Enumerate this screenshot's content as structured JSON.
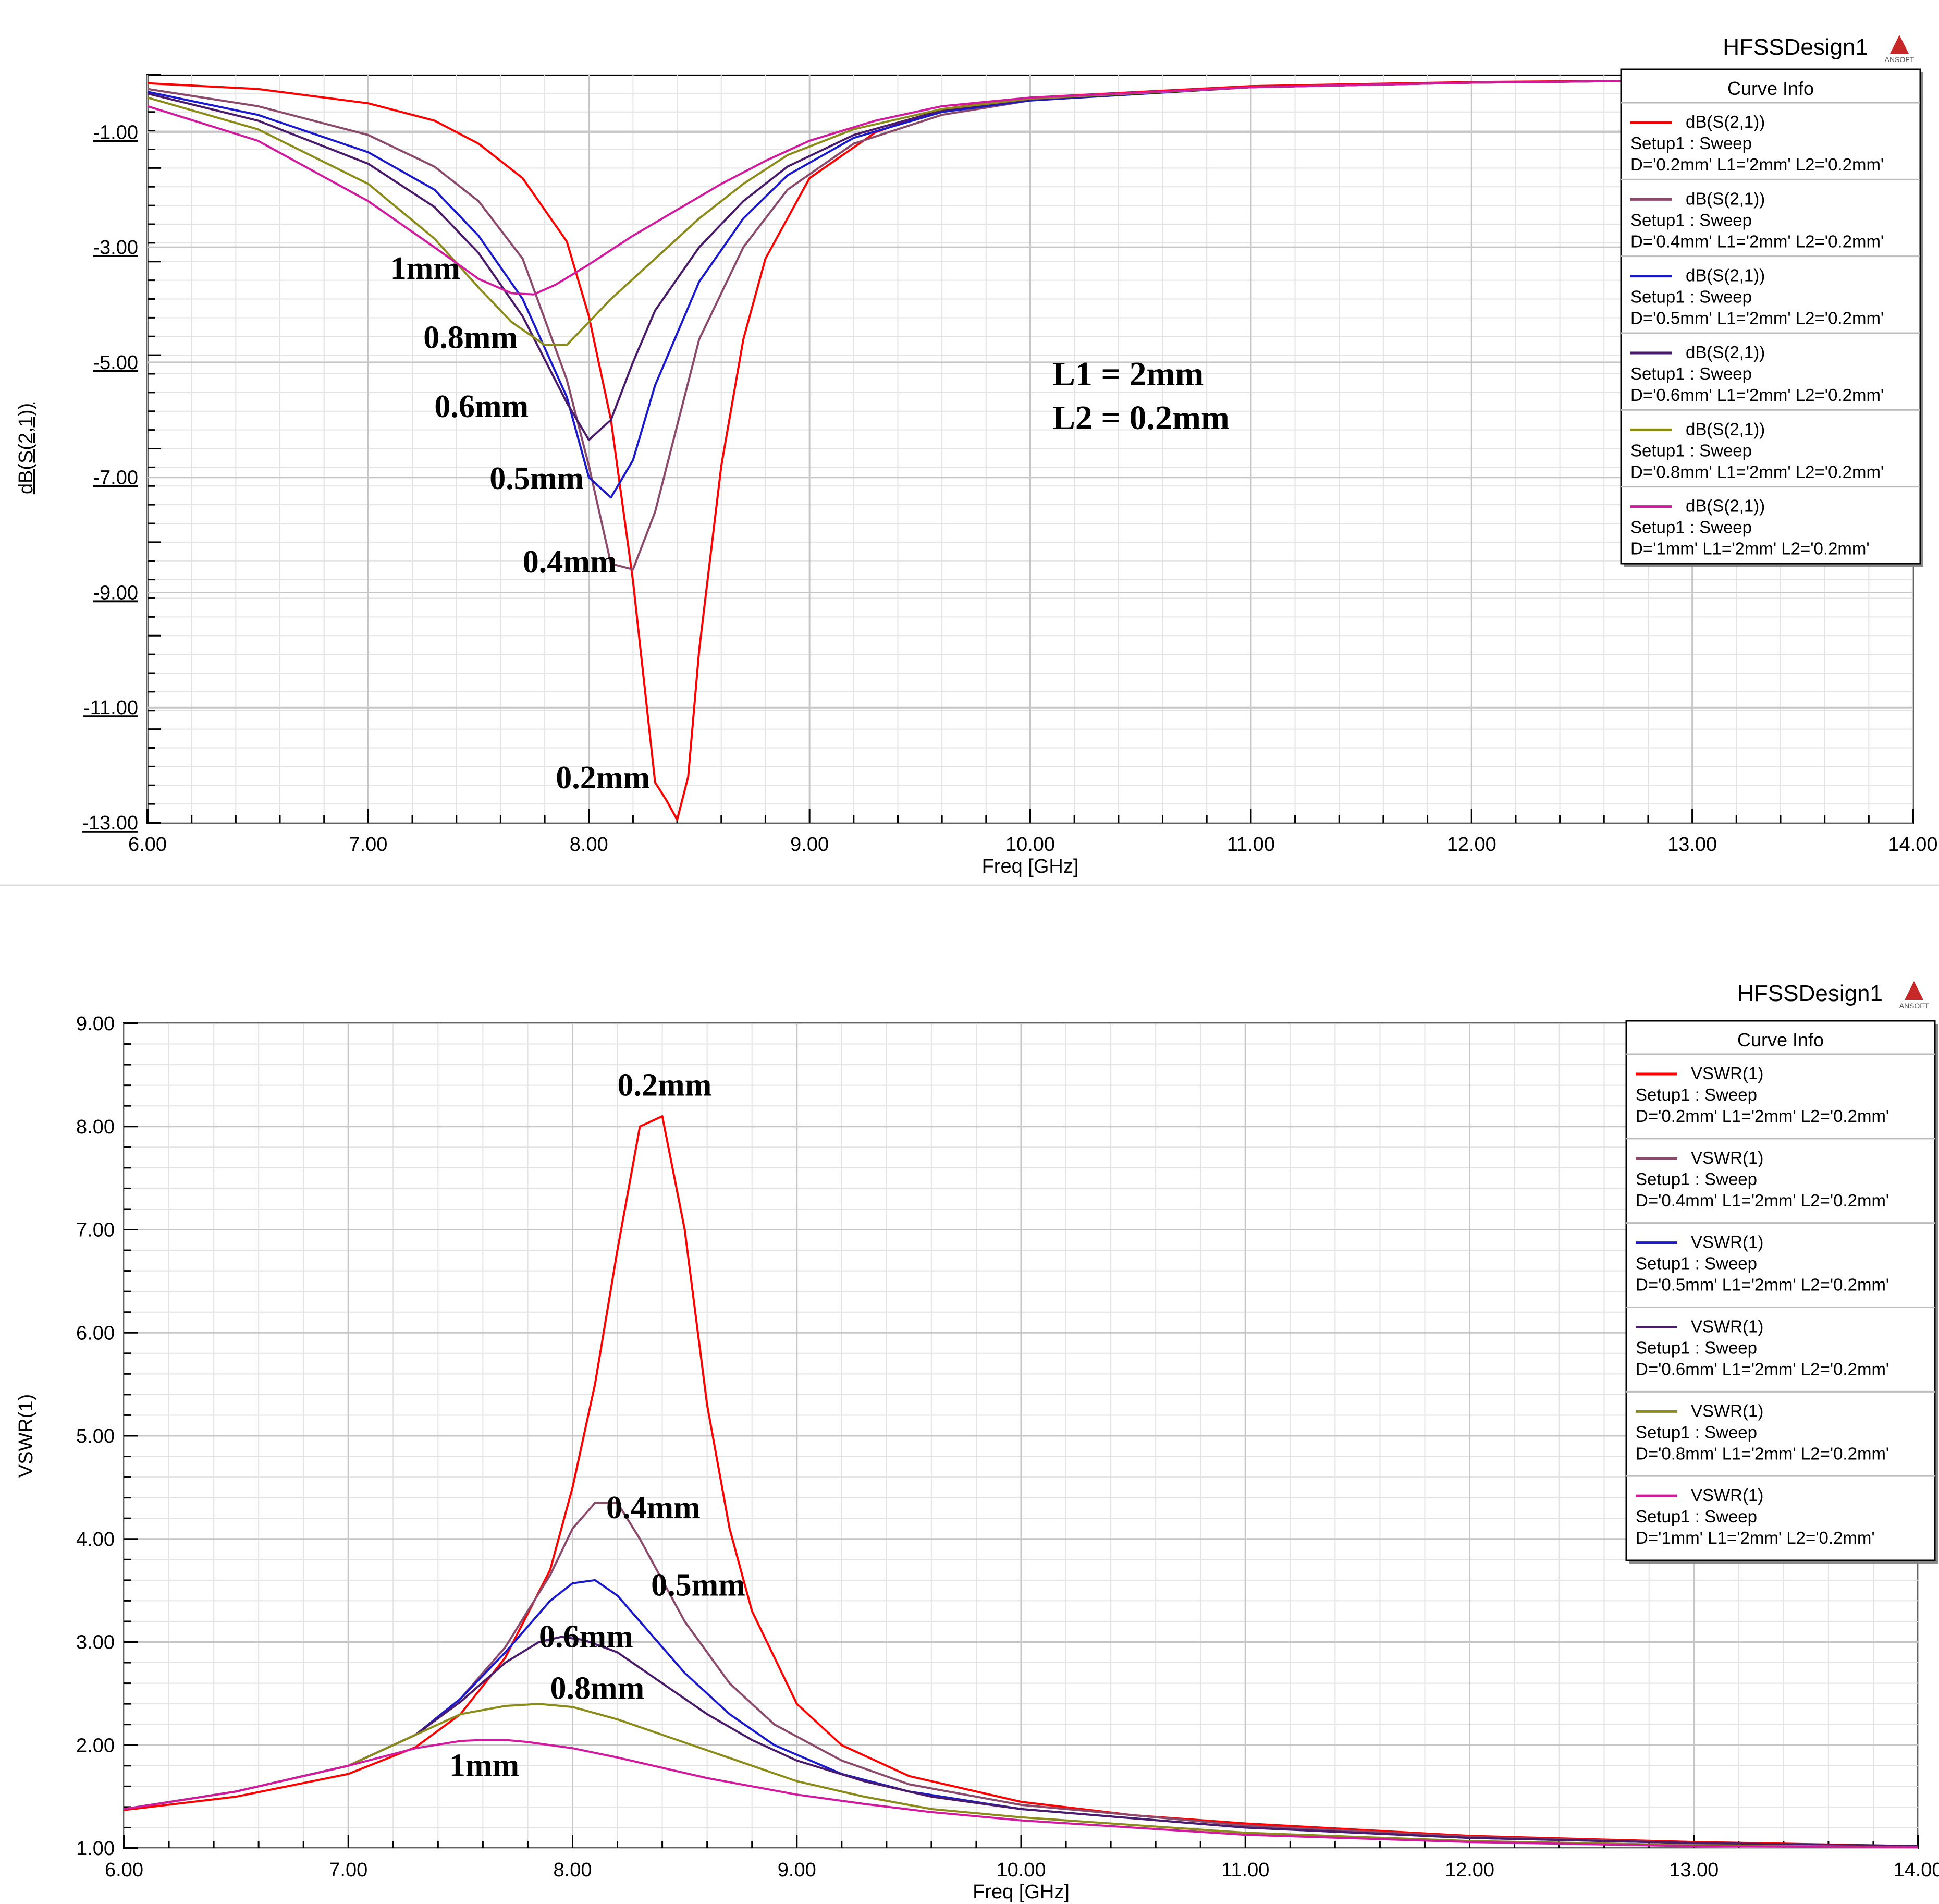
{
  "chart_data": [
    {
      "type": "line",
      "design_title": "HFSSDesign1",
      "xlabel": "Freq [GHz]",
      "ylabel": "dB(S(2,1))",
      "xlim": [
        6.0,
        14.0
      ],
      "ylim": [
        -13.0,
        0.0
      ],
      "xticks": [
        "6.00",
        "7.00",
        "8.00",
        "9.00",
        "10.00",
        "11.00",
        "12.00",
        "13.00",
        "14.00"
      ],
      "yticks": [
        "-1.00",
        "-3.00",
        "-5.00",
        "-7.00",
        "-9.00",
        "-11.00",
        "-13.00"
      ],
      "ytick_values": [
        -1,
        -3,
        -5,
        -7,
        -9,
        -11,
        -13
      ],
      "legend": {
        "title": "Curve Info",
        "position": "top-right"
      },
      "annotation": [
        "L1 = 2mm",
        "L2 = 0.2mm"
      ],
      "curve_labels": [
        {
          "text": "1mm",
          "x": 7.1,
          "y": -3.55
        },
        {
          "text": "0.8mm",
          "x": 7.25,
          "y": -4.75
        },
        {
          "text": "0.6mm",
          "x": 7.3,
          "y": -5.95
        },
        {
          "text": "0.5mm",
          "x": 7.55,
          "y": -7.2
        },
        {
          "text": "0.4mm",
          "x": 7.7,
          "y": -8.65
        },
        {
          "text": "0.2mm",
          "x": 7.85,
          "y": -12.4
        }
      ],
      "series": [
        {
          "name": "dB(S(2,1))",
          "setup": "Setup1 : Sweep",
          "params": "D='0.2mm' L1='2mm' L2='0.2mm'",
          "color": "#ff0000",
          "x": [
            6.0,
            6.5,
            7.0,
            7.3,
            7.5,
            7.7,
            7.9,
            8.0,
            8.1,
            8.2,
            8.3,
            8.35,
            8.4,
            8.45,
            8.5,
            8.6,
            8.7,
            8.8,
            9.0,
            9.3,
            9.6,
            10.0,
            11.0,
            12.0,
            13.0,
            14.0
          ],
          "y": [
            -0.15,
            -0.25,
            -0.5,
            -0.8,
            -1.2,
            -1.8,
            -2.9,
            -4.2,
            -6.0,
            -8.8,
            -12.3,
            -12.6,
            -12.95,
            -12.2,
            -10.0,
            -6.8,
            -4.6,
            -3.2,
            -1.8,
            -1.0,
            -0.6,
            -0.4,
            -0.2,
            -0.13,
            -0.1,
            -0.08
          ]
        },
        {
          "name": "dB(S(2,1))",
          "setup": "Setup1 : Sweep",
          "params": "D='0.4mm' L1='2mm' L2='0.2mm'",
          "color": "#8b4a6b",
          "x": [
            6.0,
            6.5,
            7.0,
            7.3,
            7.5,
            7.7,
            7.9,
            8.0,
            8.1,
            8.2,
            8.3,
            8.5,
            8.7,
            8.9,
            9.2,
            9.6,
            10.0,
            11.0,
            12.0,
            13.0,
            14.0
          ],
          "y": [
            -0.25,
            -0.55,
            -1.05,
            -1.6,
            -2.2,
            -3.2,
            -5.3,
            -6.8,
            -8.5,
            -8.6,
            -7.6,
            -4.6,
            -3.0,
            -2.0,
            -1.2,
            -0.7,
            -0.45,
            -0.22,
            -0.14,
            -0.1,
            -0.08
          ]
        },
        {
          "name": "dB(S(2,1))",
          "setup": "Setup1 : Sweep",
          "params": "D='0.5mm' L1='2mm' L2='0.2mm'",
          "color": "#1a1acc",
          "x": [
            6.0,
            6.5,
            7.0,
            7.3,
            7.5,
            7.7,
            7.9,
            8.0,
            8.1,
            8.2,
            8.3,
            8.5,
            8.7,
            8.9,
            9.2,
            9.6,
            10.0,
            11.0,
            12.0,
            13.0,
            14.0
          ],
          "y": [
            -0.3,
            -0.7,
            -1.35,
            -2.0,
            -2.8,
            -3.9,
            -5.6,
            -7.0,
            -7.35,
            -6.7,
            -5.4,
            -3.6,
            -2.5,
            -1.75,
            -1.1,
            -0.65,
            -0.45,
            -0.22,
            -0.14,
            -0.1,
            -0.08
          ]
        },
        {
          "name": "dB(S(2,1))",
          "setup": "Setup1 : Sweep",
          "params": "D='0.6mm' L1='2mm' L2='0.2mm'",
          "color": "#4a1a6b",
          "x": [
            6.0,
            6.5,
            7.0,
            7.3,
            7.5,
            7.7,
            7.9,
            8.0,
            8.1,
            8.2,
            8.3,
            8.5,
            8.7,
            8.9,
            9.2,
            9.6,
            10.0,
            11.0,
            12.0,
            13.0,
            14.0
          ],
          "y": [
            -0.33,
            -0.8,
            -1.55,
            -2.3,
            -3.1,
            -4.2,
            -5.7,
            -6.35,
            -6.0,
            -5.0,
            -4.1,
            -3.0,
            -2.2,
            -1.6,
            -1.05,
            -0.62,
            -0.43,
            -0.22,
            -0.14,
            -0.1,
            -0.08
          ]
        },
        {
          "name": "dB(S(2,1))",
          "setup": "Setup1 : Sweep",
          "params": "D='0.8mm' L1='2mm' L2='0.2mm'",
          "color": "#8b8b1a",
          "x": [
            6.0,
            6.5,
            7.0,
            7.3,
            7.5,
            7.65,
            7.8,
            7.9,
            8.0,
            8.1,
            8.3,
            8.5,
            8.7,
            8.9,
            9.2,
            9.6,
            10.0,
            11.0,
            12.0,
            13.0,
            14.0
          ],
          "y": [
            -0.4,
            -0.95,
            -1.9,
            -2.85,
            -3.7,
            -4.3,
            -4.7,
            -4.7,
            -4.3,
            -3.9,
            -3.2,
            -2.5,
            -1.9,
            -1.4,
            -0.95,
            -0.6,
            -0.42,
            -0.22,
            -0.14,
            -0.1,
            -0.08
          ]
        },
        {
          "name": "dB(S(2,1))",
          "setup": "Setup1 : Sweep",
          "params": "D='1mm' L1='2mm' L2='0.2mm'",
          "color": "#d21a9e",
          "x": [
            6.0,
            6.5,
            7.0,
            7.3,
            7.5,
            7.65,
            7.75,
            7.85,
            8.0,
            8.2,
            8.4,
            8.6,
            8.8,
            9.0,
            9.3,
            9.6,
            10.0,
            11.0,
            12.0,
            13.0,
            14.0
          ],
          "y": [
            -0.55,
            -1.15,
            -2.2,
            -3.0,
            -3.55,
            -3.8,
            -3.82,
            -3.65,
            -3.3,
            -2.8,
            -2.35,
            -1.9,
            -1.5,
            -1.15,
            -0.8,
            -0.55,
            -0.4,
            -0.22,
            -0.14,
            -0.1,
            -0.08
          ]
        }
      ]
    },
    {
      "type": "line",
      "design_title": "HFSSDesign1",
      "xlabel": "Freq [GHz]",
      "ylabel": "VSWR(1)",
      "xlim": [
        6.0,
        14.0
      ],
      "ylim": [
        1.0,
        9.0
      ],
      "xticks": [
        "6.00",
        "7.00",
        "8.00",
        "9.00",
        "10.00",
        "11.00",
        "12.00",
        "13.00",
        "14.00"
      ],
      "yticks": [
        "9.00",
        "8.00",
        "7.00",
        "6.00",
        "5.00",
        "4.00",
        "3.00",
        "2.00",
        "1.00"
      ],
      "ytick_values": [
        9,
        8,
        7,
        6,
        5,
        4,
        3,
        2,
        1
      ],
      "legend": {
        "title": "Curve Info",
        "position": "top-right"
      },
      "curve_labels": [
        {
          "text": "0.2mm",
          "x": 8.2,
          "y": 8.3
        },
        {
          "text": "0.4mm",
          "x": 8.15,
          "y": 4.2
        },
        {
          "text": "0.5mm",
          "x": 8.35,
          "y": 3.45
        },
        {
          "text": "0.6mm",
          "x": 7.85,
          "y": 2.95
        },
        {
          "text": "0.8mm",
          "x": 7.9,
          "y": 2.45
        },
        {
          "text": "1mm",
          "x": 7.45,
          "y": 1.7
        }
      ],
      "series": [
        {
          "name": "VSWR(1)",
          "setup": "Setup1 : Sweep",
          "params": "D='0.2mm' L1='2mm' L2='0.2mm'",
          "color": "#ff0000",
          "x": [
            6.0,
            6.5,
            7.0,
            7.3,
            7.5,
            7.7,
            7.9,
            8.0,
            8.1,
            8.2,
            8.3,
            8.4,
            8.5,
            8.6,
            8.7,
            8.8,
            9.0,
            9.2,
            9.5,
            10.0,
            10.5,
            11.0,
            12.0,
            13.0,
            14.0
          ],
          "y": [
            1.37,
            1.5,
            1.72,
            1.98,
            2.3,
            2.85,
            3.7,
            4.5,
            5.5,
            6.8,
            8.0,
            8.1,
            7.0,
            5.3,
            4.1,
            3.3,
            2.4,
            2.0,
            1.7,
            1.45,
            1.32,
            1.24,
            1.12,
            1.06,
            1.02
          ]
        },
        {
          "name": "VSWR(1)",
          "setup": "Setup1 : Sweep",
          "params": "D='0.4mm' L1='2mm' L2='0.2mm'",
          "color": "#8b4a6b",
          "x": [
            6.0,
            6.5,
            7.0,
            7.3,
            7.5,
            7.7,
            7.9,
            8.0,
            8.1,
            8.2,
            8.3,
            8.5,
            8.7,
            8.9,
            9.2,
            9.5,
            10.0,
            11.0,
            12.0,
            13.0,
            14.0
          ],
          "y": [
            1.38,
            1.55,
            1.8,
            2.1,
            2.45,
            2.95,
            3.65,
            4.1,
            4.35,
            4.35,
            4.0,
            3.2,
            2.6,
            2.2,
            1.85,
            1.62,
            1.42,
            1.22,
            1.11,
            1.05,
            1.02
          ]
        },
        {
          "name": "VSWR(1)",
          "setup": "Setup1 : Sweep",
          "params": "D='0.5mm' L1='2mm' L2='0.2mm'",
          "color": "#1a1acc",
          "x": [
            6.0,
            6.5,
            7.0,
            7.3,
            7.5,
            7.7,
            7.9,
            8.0,
            8.1,
            8.2,
            8.3,
            8.5,
            8.7,
            8.9,
            9.2,
            9.5,
            10.0,
            11.0,
            12.0,
            13.0,
            14.0
          ],
          "y": [
            1.38,
            1.55,
            1.8,
            2.1,
            2.45,
            2.9,
            3.4,
            3.57,
            3.6,
            3.45,
            3.2,
            2.7,
            2.3,
            2.0,
            1.72,
            1.55,
            1.38,
            1.2,
            1.1,
            1.05,
            1.02
          ]
        },
        {
          "name": "VSWR(1)",
          "setup": "Setup1 : Sweep",
          "params": "D='0.6mm' L1='2mm' L2='0.2mm'",
          "color": "#4a1a6b",
          "x": [
            6.0,
            6.5,
            7.0,
            7.3,
            7.5,
            7.7,
            7.85,
            7.95,
            8.05,
            8.2,
            8.4,
            8.6,
            8.8,
            9.0,
            9.3,
            9.6,
            10.0,
            11.0,
            12.0,
            13.0,
            14.0
          ],
          "y": [
            1.38,
            1.55,
            1.8,
            2.1,
            2.42,
            2.8,
            3.0,
            3.05,
            3.02,
            2.9,
            2.6,
            2.3,
            2.05,
            1.85,
            1.65,
            1.5,
            1.38,
            1.2,
            1.1,
            1.05,
            1.02
          ]
        },
        {
          "name": "VSWR(1)",
          "setup": "Setup1 : Sweep",
          "params": "D='0.8mm' L1='2mm' L2='0.2mm'",
          "color": "#8b8b1a",
          "x": [
            6.0,
            6.5,
            7.0,
            7.3,
            7.5,
            7.7,
            7.85,
            8.0,
            8.2,
            8.4,
            8.6,
            8.8,
            9.0,
            9.3,
            9.6,
            10.0,
            11.0,
            12.0,
            13.0,
            14.0
          ],
          "y": [
            1.38,
            1.55,
            1.8,
            2.1,
            2.3,
            2.38,
            2.4,
            2.37,
            2.25,
            2.1,
            1.95,
            1.8,
            1.65,
            1.5,
            1.38,
            1.3,
            1.15,
            1.07,
            1.03,
            1.01
          ]
        },
        {
          "name": "VSWR(1)",
          "setup": "Setup1 : Sweep",
          "params": "D='1mm' L1='2mm' L2='0.2mm'",
          "color": "#d21a9e",
          "x": [
            6.0,
            6.5,
            7.0,
            7.3,
            7.5,
            7.6,
            7.7,
            7.8,
            8.0,
            8.2,
            8.4,
            8.6,
            8.8,
            9.0,
            9.3,
            9.6,
            10.0,
            11.0,
            12.0,
            13.0,
            14.0
          ],
          "y": [
            1.38,
            1.55,
            1.8,
            1.97,
            2.04,
            2.05,
            2.05,
            2.03,
            1.97,
            1.88,
            1.78,
            1.68,
            1.6,
            1.52,
            1.43,
            1.35,
            1.27,
            1.13,
            1.06,
            1.02,
            1.01
          ]
        }
      ]
    }
  ]
}
